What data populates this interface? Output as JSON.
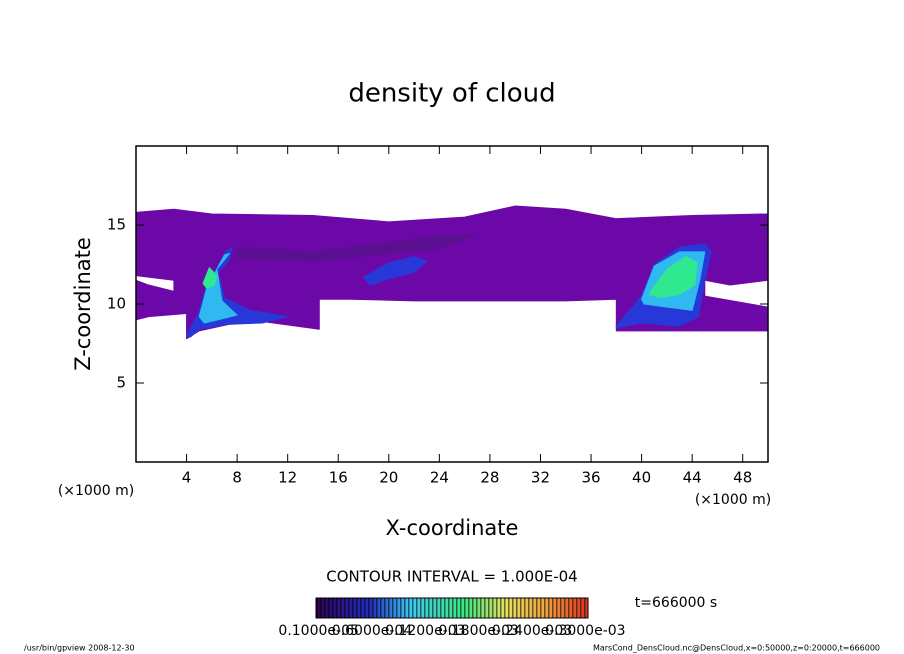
{
  "chart_data": {
    "type": "contour",
    "title": "density of cloud",
    "x_label": "X-coordinate",
    "y_label": "Z-coordinate",
    "x_unit_label": "(×1000 m)",
    "y_unit_label": "(×1000 m)",
    "xlim": [
      0,
      50
    ],
    "ylim": [
      0,
      20
    ],
    "xticks": [
      4,
      8,
      12,
      16,
      20,
      24,
      28,
      32,
      36,
      40,
      44,
      48
    ],
    "yticks": [
      5,
      10,
      15
    ],
    "regions": [
      {
        "color": "#6c08a8",
        "x": [
          0,
          3,
          6,
          14,
          20,
          26,
          30,
          34,
          38,
          44,
          50,
          50,
          47,
          45,
          45,
          50,
          50,
          38,
          38,
          34,
          26,
          22,
          17,
          14.5,
          14.5,
          9,
          5,
          4,
          4,
          1,
          0,
          0,
          1,
          3,
          3,
          0
        ],
        "y": [
          15.8,
          16,
          15.7,
          15.6,
          15.2,
          15.5,
          16.2,
          16,
          15.4,
          15.6,
          15.7,
          11.5,
          11.2,
          11.5,
          10.5,
          9.8,
          8.3,
          8.3,
          10.3,
          10.2,
          10.2,
          10.2,
          10.3,
          10.3,
          8.4,
          9,
          8.3,
          7.8,
          9.4,
          9.2,
          9,
          11.5,
          11.2,
          10.8,
          11.5,
          11.8
        ]
      },
      {
        "color": "#5a1090",
        "x": [
          8,
          14,
          20,
          24,
          27,
          24,
          20,
          14,
          8
        ],
        "y": [
          13.6,
          13.3,
          13.9,
          14.3,
          14.4,
          13.5,
          13.2,
          12.7,
          12.9
        ]
      },
      {
        "color": "#2838d8",
        "x": [
          4,
          5,
          5.5,
          7,
          7.6,
          7.4,
          6.5,
          7,
          9,
          12,
          10,
          7,
          5,
          4.3
        ],
        "y": [
          8,
          9.5,
          11,
          13.2,
          13.6,
          12.8,
          12,
          10.4,
          9.6,
          9.2,
          8.8,
          8.7,
          8.4,
          7.9
        ]
      },
      {
        "color": "#2838d8",
        "x": [
          18,
          20,
          22,
          23,
          22,
          20,
          18.5
        ],
        "y": [
          11.7,
          12.6,
          13,
          12.7,
          12,
          11.6,
          11.2
        ]
      },
      {
        "color": "#2838d8",
        "x": [
          38,
          40,
          41,
          43,
          45,
          45.5,
          45,
          44.5,
          43,
          40,
          38
        ],
        "y": [
          8.6,
          10.5,
          12.5,
          13.6,
          13.8,
          13.3,
          11.5,
          9.2,
          8.6,
          8.8,
          8.5
        ]
      },
      {
        "color": "#30b8f0",
        "x": [
          5,
          5.6,
          7,
          7.4,
          6.4,
          6.8,
          8,
          6.5,
          5.4
        ],
        "y": [
          9.2,
          11,
          13.1,
          13.2,
          12.2,
          10.2,
          9.3,
          9,
          8.8
        ]
      },
      {
        "color": "#30b8f0",
        "x": [
          40,
          41,
          43,
          45,
          44.6,
          44,
          42,
          40.2
        ],
        "y": [
          10.3,
          12.4,
          13.3,
          13.3,
          11.5,
          9.6,
          9.8,
          10
        ]
      },
      {
        "color": "#30e890",
        "x": [
          5.3,
          5.8,
          6.4,
          6.2,
          5.6
        ],
        "y": [
          11.3,
          12.3,
          11.8,
          11.2,
          11
        ]
      },
      {
        "color": "#30e890",
        "x": [
          40.8,
          42,
          43.5,
          44.4,
          44.2,
          43,
          41.5,
          40.6
        ],
        "y": [
          10.9,
          12.2,
          13,
          12.6,
          11.2,
          10.6,
          10.4,
          10.6
        ]
      }
    ],
    "contour_interval": "CONTOUR INTERVAL = 1.000E-04",
    "time_label": "t=666000 s",
    "colorbar_ticks": [
      {
        "value": 1e-06,
        "label": "0.1000e-05"
      },
      {
        "value": 6e-05,
        "label": "0.6000e-04"
      },
      {
        "value": 0.00012,
        "label": "0.1200e-03"
      },
      {
        "value": 0.00018,
        "label": "0.1800e-03"
      },
      {
        "value": 0.00024,
        "label": "0.2400e-03"
      },
      {
        "value": 0.0003,
        "label": "0.3000e-03"
      }
    ],
    "footer_left": "/usr/bin/gpview  2008-12-30",
    "footer_right": "MarsCond_DensCloud.nc@DensCloud,x=0:50000,z=0:20000,t=666000"
  }
}
